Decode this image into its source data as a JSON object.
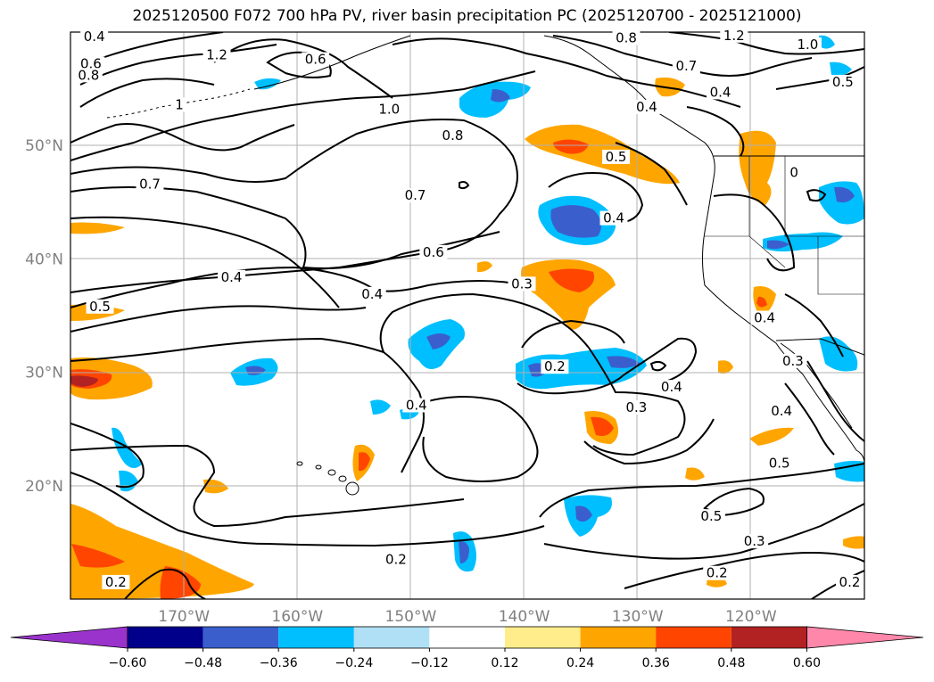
{
  "title": "2025120500 F072 700 hPa PV, river basin precipitation PC (2025120700 - 2025121000)",
  "map": {
    "lon_range": [
      -180,
      -110
    ],
    "lat_range": [
      10,
      60
    ],
    "lat_ticks": [
      {
        "value": 20,
        "label": "20°N"
      },
      {
        "value": 30,
        "label": "30°N"
      },
      {
        "value": 40,
        "label": "40°N"
      },
      {
        "value": 50,
        "label": "50°N"
      }
    ],
    "lon_ticks": [
      {
        "value": -170,
        "label": "170°W"
      },
      {
        "value": -160,
        "label": "160°W"
      },
      {
        "value": -150,
        "label": "150°W"
      },
      {
        "value": -140,
        "label": "140°W"
      },
      {
        "value": -130,
        "label": "130°W"
      },
      {
        "value": -120,
        "label": "120°W"
      }
    ],
    "contour_labels": [
      {
        "lon": -177.9,
        "lat": 59.6,
        "text": "0.4"
      },
      {
        "lon": -178.2,
        "lat": 57.2,
        "text": "0.6"
      },
      {
        "lon": -178.4,
        "lat": 56.2,
        "text": "0.8"
      },
      {
        "lon": -167.1,
        "lat": 58.0,
        "text": "1.2"
      },
      {
        "lon": -170.4,
        "lat": 53.6,
        "text": "1"
      },
      {
        "lon": -158.4,
        "lat": 57.6,
        "text": "0.6"
      },
      {
        "lon": -151.9,
        "lat": 53.2,
        "text": "1.0"
      },
      {
        "lon": -146.3,
        "lat": 50.9,
        "text": "0.8"
      },
      {
        "lon": -173.0,
        "lat": 46.6,
        "text": "0.7"
      },
      {
        "lon": -149.6,
        "lat": 45.6,
        "text": "0.7"
      },
      {
        "lon": -131.0,
        "lat": 59.5,
        "text": "0.8"
      },
      {
        "lon": -121.5,
        "lat": 59.7,
        "text": "1.2"
      },
      {
        "lon": -115.0,
        "lat": 58.9,
        "text": "1.0"
      },
      {
        "lon": -125.7,
        "lat": 57.0,
        "text": "0.7"
      },
      {
        "lon": -122.7,
        "lat": 54.7,
        "text": "0.4"
      },
      {
        "lon": -111.9,
        "lat": 55.6,
        "text": "0.5"
      },
      {
        "lon": -129.2,
        "lat": 53.4,
        "text": "0.4"
      },
      {
        "lon": -131.9,
        "lat": 49.0,
        "text": "0.5"
      },
      {
        "lon": -116.2,
        "lat": 47.6,
        "text": "0"
      },
      {
        "lon": -132.1,
        "lat": 43.6,
        "text": "0.4"
      },
      {
        "lon": -148.0,
        "lat": 40.6,
        "text": "0.6"
      },
      {
        "lon": -165.8,
        "lat": 38.4,
        "text": "0.4"
      },
      {
        "lon": -177.4,
        "lat": 35.8,
        "text": "0.5"
      },
      {
        "lon": -153.4,
        "lat": 36.9,
        "text": "0.4"
      },
      {
        "lon": -140.2,
        "lat": 37.8,
        "text": "0.3"
      },
      {
        "lon": -118.8,
        "lat": 34.8,
        "text": "0.4"
      },
      {
        "lon": -116.3,
        "lat": 31.0,
        "text": "0.3"
      },
      {
        "lon": -117.3,
        "lat": 26.6,
        "text": "0.4"
      },
      {
        "lon": -117.5,
        "lat": 22.0,
        "text": "0.5"
      },
      {
        "lon": -137.3,
        "lat": 30.5,
        "text": "0.2"
      },
      {
        "lon": -149.5,
        "lat": 27.1,
        "text": "0.4"
      },
      {
        "lon": -127.0,
        "lat": 28.7,
        "text": "0.4"
      },
      {
        "lon": -130.1,
        "lat": 26.9,
        "text": "0.3"
      },
      {
        "lon": -123.5,
        "lat": 17.3,
        "text": "0.5"
      },
      {
        "lon": -119.7,
        "lat": 15.1,
        "text": "0.3"
      },
      {
        "lon": -123.0,
        "lat": 12.3,
        "text": "0.2"
      },
      {
        "lon": -151.3,
        "lat": 13.5,
        "text": "0.2"
      },
      {
        "lon": -176.0,
        "lat": 11.5,
        "text": "0.2"
      },
      {
        "lon": -111.3,
        "lat": 11.5,
        "text": "0.2"
      }
    ]
  },
  "colorbar": {
    "ticks": [
      "−0.60",
      "−0.48",
      "−0.36",
      "−0.24",
      "−0.12",
      "0.12",
      "0.24",
      "0.36",
      "0.48",
      "0.60"
    ],
    "colors": [
      "#9933cc",
      "#00008b",
      "#3a5fcd",
      "#00bfff",
      "#b0e0f6",
      "#ffffff",
      "#ffec8b",
      "#ffa500",
      "#ff4500",
      "#b22222",
      "#ff88aa"
    ]
  }
}
